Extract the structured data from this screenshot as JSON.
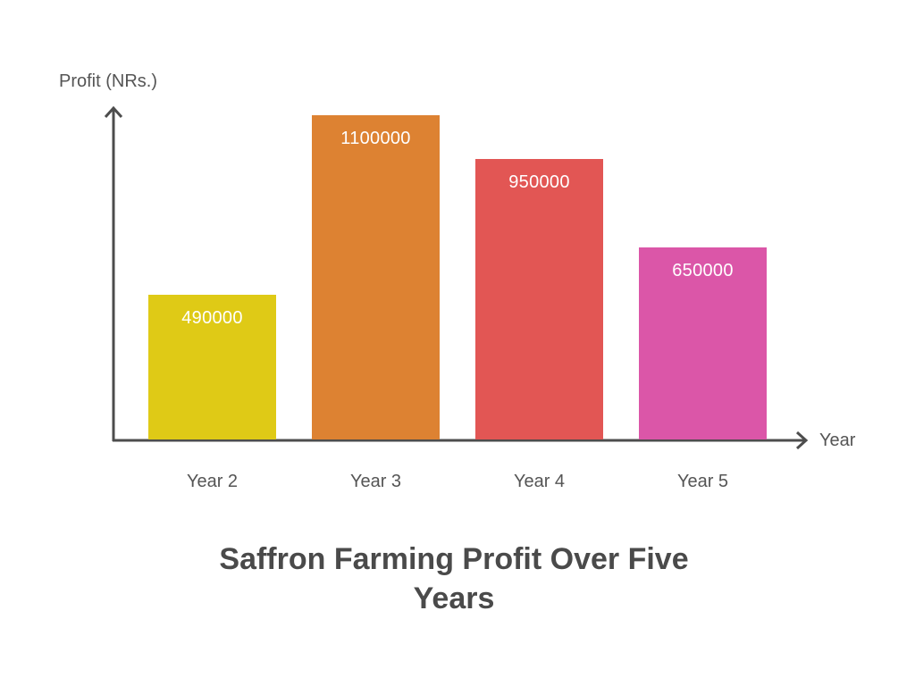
{
  "chart_data": {
    "type": "bar",
    "title": "Saffron Farming Profit Over Five Years",
    "xlabel": "Year",
    "ylabel": "Profit (NRs.)",
    "categories": [
      "Year 2",
      "Year 3",
      "Year 4",
      "Year 5"
    ],
    "values": [
      490000,
      1100000,
      950000,
      650000
    ],
    "value_labels": [
      "490000",
      "1100000",
      "950000",
      "650000"
    ],
    "colors": [
      "#dfca16",
      "#dd8232",
      "#e25654",
      "#db56a8"
    ],
    "grid": false,
    "legend": null,
    "ylim": [
      0,
      1200000
    ]
  },
  "axes": {
    "y_label": "Profit (NRs.)",
    "x_label": "Year",
    "color": "#4d4d4d"
  },
  "title": {
    "line1": "Saffron Farming Profit Over Five",
    "line2": "Years"
  }
}
